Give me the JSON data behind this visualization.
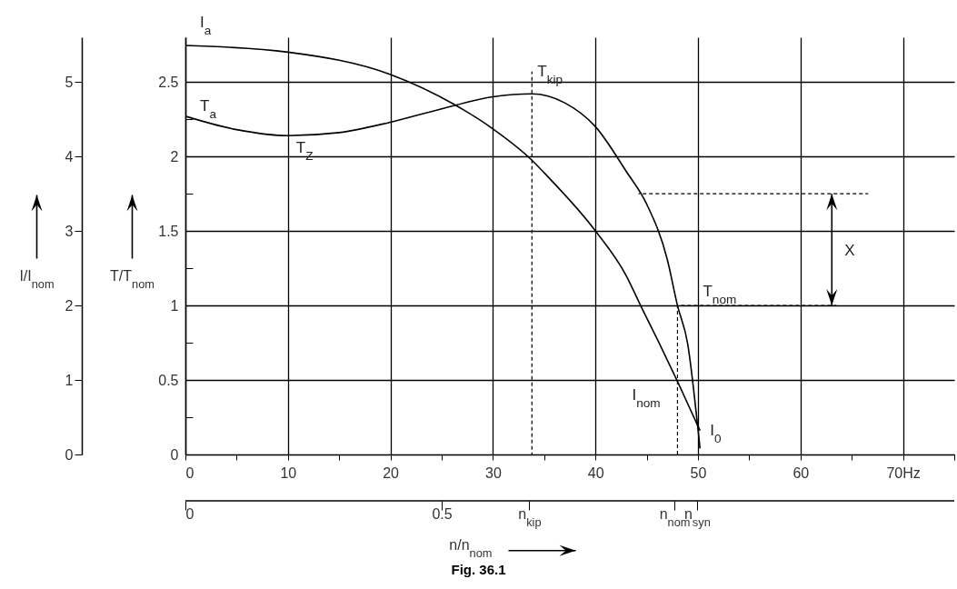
{
  "chart_data": {
    "type": "line",
    "xlim": [
      0,
      75
    ],
    "xticks": [
      0,
      {
        "value": 5,
        "label": null
      },
      10,
      {
        "value": 15,
        "label": null
      },
      20,
      {
        "value": 25,
        "label": null
      },
      30,
      {
        "value": 35,
        "label": null
      },
      40,
      {
        "value": 45,
        "label": null
      },
      50,
      {
        "value": 55,
        "label": null
      },
      60,
      {
        "value": 65,
        "label": null
      },
      {
        "value": 70,
        "label": "70Hz"
      },
      {
        "value": 75,
        "label": null
      }
    ],
    "ylim": [
      0,
      2.8
    ],
    "yticks": [
      0,
      {
        "value": 0.25,
        "label": null
      },
      0.5,
      {
        "value": 0.75,
        "label": null
      },
      1,
      {
        "value": 1.25,
        "label": null
      },
      1.5,
      {
        "value": 1.75,
        "label": null
      },
      2,
      {
        "value": 2.25,
        "label": null
      },
      2.5
    ],
    "y2lim": [
      0,
      5.6
    ],
    "y2ticks": [
      0,
      1,
      2,
      3,
      4,
      5
    ],
    "x2lim": [
      0,
      1.5
    ],
    "x2ticks": [
      0,
      0.5,
      {
        "value": 0.671,
        "label": "n$_{kip}$"
      },
      {
        "value": 0.954,
        "label": "n$_{nom}$"
      },
      {
        "value": 0.998,
        "label": "n$_{syn}$"
      }
    ],
    "ylabel": "T/T$_{nom}$",
    "y2label": "I/I$_{nom}$",
    "x2label": "n/n$_{nom}$",
    "grid": true,
    "series": [
      {
        "color": "#000000",
        "x": [
          0,
          5,
          10,
          15,
          20,
          25,
          30,
          33.8,
          37,
          40,
          43,
          45,
          47,
          48,
          49,
          50,
          50.2
        ],
        "values": [
          2.27,
          2.18,
          2.14,
          2.16,
          2.23,
          2.32,
          2.4,
          2.42,
          2.36,
          2.2,
          1.9,
          1.68,
          1.31,
          1.0,
          0.74,
          0.17,
          0.04
        ]
      },
      {
        "color": "#000000",
        "axis": "y2",
        "x": [
          0,
          10,
          20,
          26.2,
          30,
          33.8,
          35,
          40,
          43,
          44.4,
          46.2,
          48,
          50.2
        ],
        "values": [
          5.49,
          5.4,
          5.1,
          4.7,
          4.37,
          3.95,
          3.78,
          3.0,
          2.4,
          2.0,
          1.5,
          0.98,
          0.32
        ]
      },
      {
        "color": "#000000",
        "line_style": "dashed",
        "x": [
          33.8,
          33.8
        ],
        "values": [
          0,
          2.57
        ]
      },
      {
        "color": "#000000",
        "line_style": "dashed",
        "x": [
          48,
          48
        ],
        "values": [
          0,
          1.0
        ]
      },
      {
        "color": "#000000",
        "line_style": "dashed",
        "x": [
          44.2,
          66.6
        ],
        "values": [
          1.75,
          1.75
        ]
      },
      {
        "color": "#000000",
        "line_style": "dashed",
        "x": [
          48,
          63.5
        ],
        "values": [
          1.0,
          1.0
        ]
      }
    ],
    "annotations": [
      {
        "text": "I$_{a}$",
        "x": 0,
        "y": 2.745
      },
      {
        "text": "T$_{a}$",
        "x": 0,
        "y": 2.27
      },
      {
        "text": "T$_{Z}$",
        "x": 10,
        "y": 2.14
      },
      {
        "text": "T$_{kip}$",
        "x": 33.8,
        "y": 2.42
      },
      {
        "text": "T$_{nom}$",
        "x": 48,
        "y": 1.0
      },
      {
        "text": "I$_{nom}$",
        "x": 48,
        "y": 0.49
      },
      {
        "text": "I$_{0}$",
        "x": 50.2,
        "y": 0.16
      },
      "X",
      "Fig. 36.1"
    ]
  }
}
